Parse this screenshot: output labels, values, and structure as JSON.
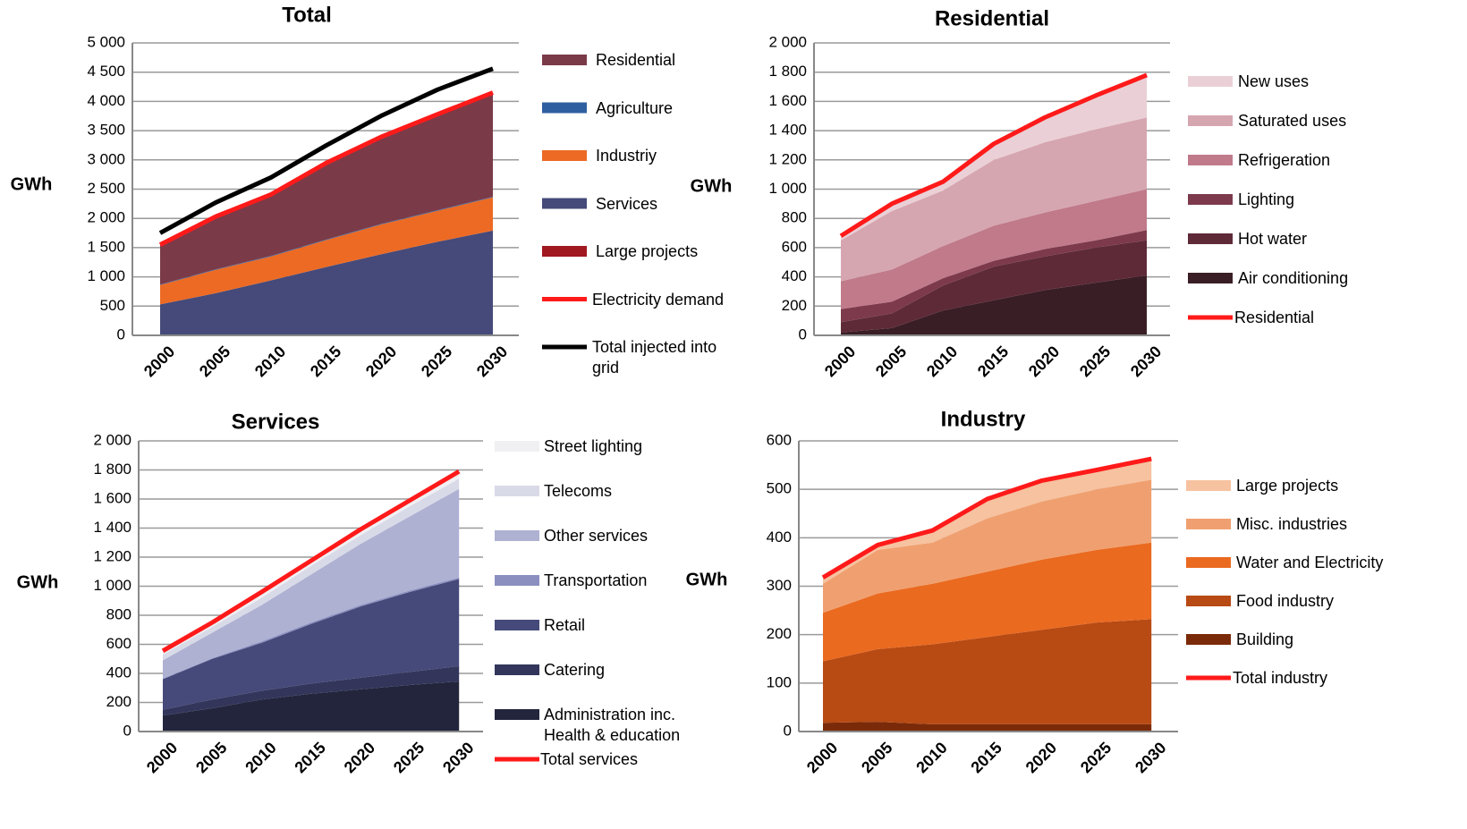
{
  "chart_data": [
    {
      "type": "area",
      "title": "Total",
      "y_label": "GWh",
      "categories": [
        "2000",
        "2005",
        "2010",
        "2015",
        "2020",
        "2025",
        "2030"
      ],
      "ylim": [
        0,
        5000
      ],
      "yticks": [
        0,
        500,
        {
          "value": 1000,
          "label": "1 000"
        },
        {
          "value": 1500,
          "label": "1 500"
        },
        {
          "value": 2000,
          "label": "2 000"
        },
        {
          "value": 2500,
          "label": "2 500"
        },
        {
          "value": 3000,
          "label": "3 000"
        },
        {
          "value": 3500,
          "label": "3 500"
        },
        {
          "value": 4000,
          "label": "4 000"
        },
        {
          "value": 4500,
          "label": "4 500"
        },
        {
          "value": 5000,
          "label": "5 000"
        }
      ],
      "series": [
        {
          "name": "Residential",
          "color": "#7b3a48",
          "values": [
            680,
            900,
            1050,
            1310,
            1490,
            1640,
            1780
          ]
        },
        {
          "name": "Agriculture",
          "color": "#2e5fa0",
          "values": [
            10,
            10,
            10,
            10,
            10,
            10,
            10
          ]
        },
        {
          "name": "Industriy",
          "color": "#ec6a24",
          "values": [
            330,
            400,
            410,
            460,
            510,
            530,
            570
          ]
        },
        {
          "name": "Services",
          "color": "#454a7a",
          "values": [
            520,
            710,
            930,
            1160,
            1380,
            1590,
            1780
          ]
        },
        {
          "name": "Large projects",
          "color": "#a01820",
          "values": [
            10,
            10,
            10,
            10,
            10,
            10,
            10
          ]
        },
        {
          "name": "Electricity demand",
          "color": "#ff1a1a",
          "type": "line",
          "values": [
            1550,
            2030,
            2410,
            2950,
            3400,
            3780,
            4150
          ]
        },
        {
          "name": "Total injected into grid",
          "color": "#000000",
          "type": "line",
          "values": [
            1750,
            2270,
            2700,
            3250,
            3760,
            4200,
            4560
          ]
        }
      ]
    },
    {
      "type": "area",
      "title": "Residential",
      "y_label": "GWh",
      "categories": [
        "2000",
        "2005",
        "2010",
        "2015",
        "2020",
        "2025",
        "2030"
      ],
      "ylim": [
        0,
        2000
      ],
      "yticks": [
        0,
        200,
        400,
        600,
        800,
        {
          "value": 1000,
          "label": "1 000"
        },
        {
          "value": 1200,
          "label": "1 200"
        },
        {
          "value": 1400,
          "label": "1 400"
        },
        {
          "value": 1600,
          "label": "1 600"
        },
        {
          "value": 1800,
          "label": "1 800"
        },
        {
          "value": 2000,
          "label": "2 000"
        }
      ],
      "series": [
        {
          "name": "New uses",
          "color": "#ead0d6",
          "values": [
            30,
            50,
            60,
            110,
            170,
            230,
            290
          ]
        },
        {
          "name": "Saturated uses",
          "color": "#d6a6b0",
          "values": [
            280,
            400,
            380,
            450,
            480,
            490,
            490
          ]
        },
        {
          "name": "Refrigeration",
          "color": "#c07a8a",
          "values": [
            190,
            220,
            220,
            240,
            250,
            270,
            280
          ]
        },
        {
          "name": "Lighting",
          "color": "#7d3a4c",
          "values": [
            90,
            80,
            50,
            40,
            50,
            50,
            70
          ]
        },
        {
          "name": "Hot water",
          "color": "#5e2a38",
          "values": [
            70,
            100,
            170,
            230,
            230,
            240,
            240
          ]
        },
        {
          "name": "Air conditioning",
          "color": "#3a1e26",
          "values": [
            20,
            50,
            170,
            240,
            310,
            360,
            410
          ]
        },
        {
          "name": "Residential",
          "color": "#ff1a1a",
          "type": "line",
          "values": [
            680,
            900,
            1050,
            1310,
            1490,
            1640,
            1780
          ]
        }
      ]
    },
    {
      "type": "area",
      "title": "Services",
      "y_label": "GWh",
      "categories": [
        "2000",
        "2005",
        "2010",
        "2015",
        "2020",
        "2025",
        "2030"
      ],
      "ylim": [
        0,
        2000
      ],
      "yticks": [
        0,
        200,
        400,
        600,
        800,
        {
          "value": 1000,
          "label": "1 000"
        },
        {
          "value": 1200,
          "label": "1 200"
        },
        {
          "value": 1400,
          "label": "1 400"
        },
        {
          "value": 1600,
          "label": "1 600"
        },
        {
          "value": 1800,
          "label": "1 800"
        },
        {
          "value": 2000,
          "label": "2 000"
        }
      ],
      "series": [
        {
          "name": "Street lighting",
          "color": "#f0f0f3",
          "values": [
            25,
            30,
            40,
            35,
            40,
            40,
            50
          ]
        },
        {
          "name": "Telecoms",
          "color": "#d9dae8",
          "values": [
            40,
            40,
            50,
            60,
            60,
            70,
            70
          ]
        },
        {
          "name": "Other services",
          "color": "#aeb1d2",
          "values": [
            125,
            175,
            250,
            330,
            420,
            510,
            610
          ]
        },
        {
          "name": "Transportation",
          "color": "#8a8fc0",
          "values": [
            5,
            5,
            10,
            10,
            10,
            10,
            10
          ]
        },
        {
          "name": "Retail",
          "color": "#454a7a",
          "values": [
            210,
            280,
            330,
            410,
            490,
            550,
            600
          ]
        },
        {
          "name": "Catering",
          "color": "#33365a",
          "values": [
            40,
            60,
            60,
            70,
            80,
            90,
            105
          ]
        },
        {
          "name": "Administration inc. Health & education",
          "color": "#23253d",
          "values": [
            110,
            160,
            220,
            260,
            290,
            320,
            345
          ]
        },
        {
          "name": "Total services",
          "color": "#ff1a1a",
          "type": "line",
          "values": [
            555,
            750,
            960,
            1175,
            1390,
            1590,
            1790
          ]
        }
      ]
    },
    {
      "type": "area",
      "title": "Industry",
      "y_label": "GWh",
      "categories": [
        "2000",
        "2005",
        "2010",
        "2015",
        "2020",
        "2025",
        "2030"
      ],
      "ylim": [
        0,
        600
      ],
      "yticks": [
        0,
        100,
        200,
        300,
        400,
        500,
        600
      ],
      "series": [
        {
          "name": "Large projects",
          "color": "#f6c2a0",
          "values": [
            13,
            10,
            25,
            40,
            43,
            40,
            43
          ]
        },
        {
          "name": "Misc. industries",
          "color": "#f0a070",
          "values": [
            60,
            90,
            85,
            110,
            120,
            125,
            130
          ]
        },
        {
          "name": "Water and Electricity",
          "color": "#ea6a20",
          "values": [
            100,
            115,
            125,
            135,
            145,
            150,
            158
          ]
        },
        {
          "name": "Food industry",
          "color": "#b84a14",
          "values": [
            127,
            150,
            165,
            180,
            195,
            210,
            217
          ]
        },
        {
          "name": "Building",
          "color": "#7a2a08",
          "values": [
            18,
            20,
            15,
            15,
            15,
            15,
            15
          ]
        },
        {
          "name": "Total industry",
          "color": "#ff1a1a",
          "type": "line",
          "values": [
            318,
            385,
            415,
            480,
            518,
            540,
            563
          ]
        }
      ]
    }
  ]
}
